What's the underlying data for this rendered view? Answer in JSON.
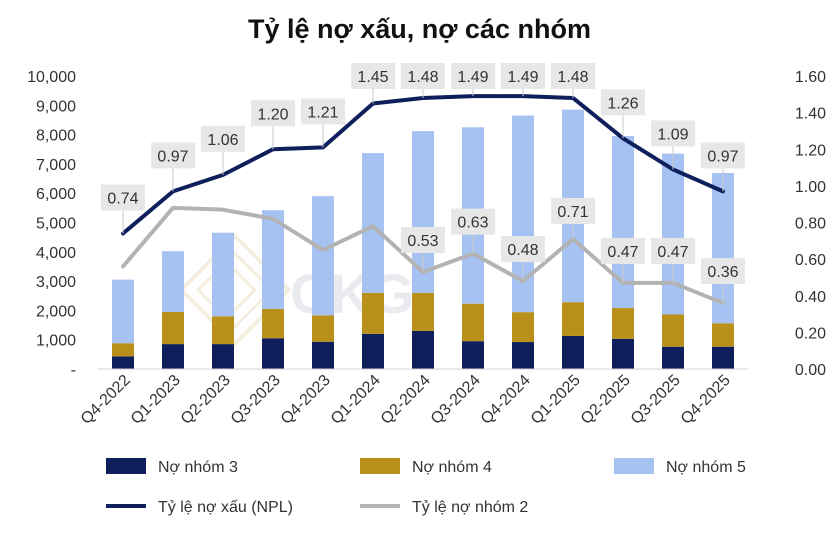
{
  "chart_data": {
    "type": "bar",
    "title": "Tỷ lệ nợ xấu, nợ các nhóm",
    "categories": [
      "Q4-2022",
      "Q1-2023",
      "Q2-2023",
      "Q3-2023",
      "Q4-2023",
      "Q1-2024",
      "Q2-2024",
      "Q3-2024",
      "Q4-2024",
      "Q1-2025",
      "Q2-2025",
      "Q3-2025",
      "Q4-2025"
    ],
    "left_axis": {
      "ylim": [
        0,
        10000
      ],
      "ticks": [
        "-",
        "1,000",
        "2,000",
        "3,000",
        "4,000",
        "5,000",
        "6,000",
        "7,000",
        "8,000",
        "9,000",
        "10,000"
      ]
    },
    "right_axis": {
      "ylim": [
        0,
        1.6
      ],
      "ticks": [
        "0.00",
        "0.20",
        "0.40",
        "0.60",
        "0.80",
        "1.00",
        "1.20",
        "1.40",
        "1.60"
      ]
    },
    "stacked_series": [
      {
        "name": "Nợ nhóm 3",
        "color": "#0e1f5c",
        "values": [
          430,
          850,
          850,
          1050,
          930,
          1200,
          1300,
          950,
          920,
          1130,
          1030,
          760,
          760
        ]
      },
      {
        "name": "Nợ nhóm 4",
        "color": "#b8901a",
        "values": [
          450,
          1100,
          950,
          1000,
          900,
          1400,
          1300,
          1280,
          1020,
          1150,
          1050,
          1100,
          800
        ]
      },
      {
        "name": "Nợ nhóm 5",
        "color": "#a6c2f2",
        "values": [
          2170,
          2070,
          2850,
          3370,
          4070,
          4770,
          5520,
          6020,
          6710,
          6570,
          5870,
          5490,
          5130
        ]
      }
    ],
    "line_series": [
      {
        "name": "Tỷ lệ nợ xấu (NPL)",
        "color": "#0e1f5c",
        "axis": "right",
        "values": [
          0.74,
          0.97,
          1.06,
          1.2,
          1.21,
          1.45,
          1.48,
          1.49,
          1.49,
          1.48,
          1.26,
          1.09,
          0.97
        ],
        "labels": [
          "0.74",
          "0.97",
          "1.06",
          "1.20",
          "1.21",
          "1.45",
          "1.48",
          "1.49",
          "1.49",
          "1.48",
          "1.26",
          "1.09",
          "0.97"
        ]
      },
      {
        "name": "Tỷ lệ nợ nhóm 2",
        "color": "#b3b3b3",
        "axis": "right",
        "values": [
          0.56,
          0.88,
          0.87,
          0.82,
          0.65,
          0.78,
          0.53,
          0.63,
          0.48,
          0.71,
          0.47,
          0.47,
          0.36
        ],
        "labels": [
          "",
          "",
          "",
          "",
          "",
          "",
          "0.53",
          "0.63",
          "0.48",
          "0.71",
          "0.47",
          "0.47",
          "0.36"
        ]
      }
    ],
    "watermark": "CKG",
    "legend_position": "bottom",
    "grid": false
  }
}
